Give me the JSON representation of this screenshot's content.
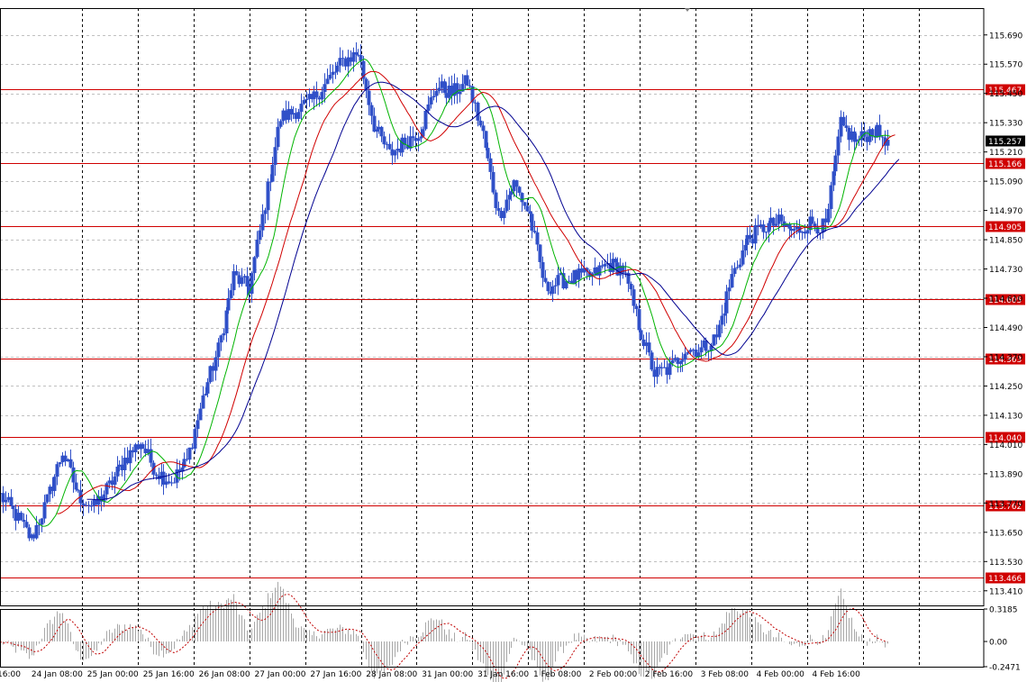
{
  "chart_data": {
    "type": "candlestick",
    "main_panel": {
      "y_range": [
        113.35,
        115.8
      ],
      "y_ticks": [
        "115.690",
        "115.570",
        "115.450",
        "115.330",
        "115.210",
        "115.090",
        "114.970",
        "114.850",
        "114.730",
        "114.610",
        "114.490",
        "114.370",
        "114.250",
        "114.130",
        "114.010",
        "113.890",
        "113.770",
        "113.650",
        "113.530",
        "113.410"
      ],
      "horizontal_levels": [
        "115.467",
        "115.166",
        "114.905",
        "114.605",
        "114.363",
        "114.040",
        "113.762",
        "113.466"
      ],
      "current_price": "115.257",
      "price_series_color": "#3050c8",
      "price_anchors": [
        [
          "24 Jan 00:00",
          113.8
        ],
        [
          "24 Jan 04:00",
          113.72
        ],
        [
          "24 Jan 08:00",
          113.62
        ],
        [
          "24 Jan 12:00",
          113.78
        ],
        [
          "24 Jan 16:00",
          113.98
        ],
        [
          "24 Jan 20:00",
          113.8
        ],
        [
          "25 Jan 00:00",
          113.75
        ],
        [
          "25 Jan 04:00",
          113.84
        ],
        [
          "25 Jan 08:00",
          113.95
        ],
        [
          "25 Jan 12:00",
          114.02
        ],
        [
          "25 Jan 16:00",
          113.9
        ],
        [
          "26 Jan 00:00",
          113.86
        ],
        [
          "26 Jan 08:00",
          113.94
        ],
        [
          "26 Jan 12:00",
          114.2
        ],
        [
          "26 Jan 16:00",
          114.4
        ],
        [
          "27 Jan 00:00",
          114.7
        ],
        [
          "27 Jan 04:00",
          114.65
        ],
        [
          "27 Jan 08:00",
          115.0
        ],
        [
          "27 Jan 12:00",
          115.35
        ],
        [
          "27 Jan 16:00",
          115.38
        ],
        [
          "27 Jan 20:00",
          115.42
        ],
        [
          "28 Jan 00:00",
          115.5
        ],
        [
          "28 Jan 04:00",
          115.58
        ],
        [
          "28 Jan 08:00",
          115.62
        ],
        [
          "28 Jan 12:00",
          115.32
        ],
        [
          "28 Jan 16:00",
          115.2
        ],
        [
          "28 Jan 20:00",
          115.25
        ],
        [
          "31 Jan 00:00",
          115.3
        ],
        [
          "31 Jan 04:00",
          115.48
        ],
        [
          "31 Jan 08:00",
          115.45
        ],
        [
          "31 Jan 12:00",
          115.5
        ],
        [
          "31 Jan 16:00",
          115.28
        ],
        [
          "31 Jan 20:00",
          114.95
        ],
        [
          "1 Feb 00:00",
          115.08
        ],
        [
          "1 Feb 04:00",
          114.95
        ],
        [
          "1 Feb 08:00",
          114.65
        ],
        [
          "1 Feb 12:00",
          114.68
        ],
        [
          "1 Feb 16:00",
          114.7
        ],
        [
          "1 Feb 20:00",
          114.7
        ],
        [
          "2 Feb 00:00",
          114.75
        ],
        [
          "2 Feb 04:00",
          114.73
        ],
        [
          "2 Feb 08:00",
          114.5
        ],
        [
          "2 Feb 12:00",
          114.3
        ],
        [
          "2 Feb 16:00",
          114.32
        ],
        [
          "2 Feb 20:00",
          114.4
        ],
        [
          "3 Feb 00:00",
          114.4
        ],
        [
          "3 Feb 04:00",
          114.45
        ],
        [
          "3 Feb 08:00",
          114.7
        ],
        [
          "3 Feb 12:00",
          114.85
        ],
        [
          "3 Feb 16:00",
          114.9
        ],
        [
          "3 Feb 20:00",
          114.92
        ],
        [
          "4 Feb 00:00",
          114.88
        ],
        [
          "4 Feb 04:00",
          114.92
        ],
        [
          "4 Feb 08:00",
          114.9
        ],
        [
          "4 Feb 12:00",
          115.32
        ],
        [
          "4 Feb 16:00",
          115.25
        ],
        [
          "4 Feb 20:00",
          115.3
        ],
        [
          "5 Feb 00:00",
          115.26
        ]
      ],
      "moving_averages": [
        {
          "color": "#00b400",
          "period": 10
        },
        {
          "color": "#d00000",
          "period": 20
        },
        {
          "color": "#000090",
          "period": 30
        }
      ]
    },
    "sub_panel": {
      "type": "histogram",
      "y_ticks": [
        "0.3185",
        "0.00",
        "-0.2471"
      ],
      "y_range": [
        -0.2471,
        0.3185
      ],
      "bar_color": "#a8a8a8",
      "signal_color": "#c00000"
    },
    "x_ticks": [
      "16:00",
      "24 Jan 08:00",
      "25 Jan 00:00",
      "25 Jan 16:00",
      "26 Jan 08:00",
      "27 Jan 00:00",
      "27 Jan 16:00",
      "28 Jan 08:00",
      "31 Jan 00:00",
      "31 Jan 16:00",
      "1 Feb 08:00",
      "2 Feb 00:00",
      "2 Feb 16:00",
      "3 Feb 08:00",
      "4 Feb 00:00",
      "4 Feb 16:00"
    ],
    "grid": true,
    "colors": {
      "background": "#ffffff",
      "grid": "#c0c0c0",
      "vertical_separator": "#000000",
      "level_line": "#d00000",
      "level_label_bg": "#d00000",
      "current_label_bg": "#000000"
    }
  }
}
